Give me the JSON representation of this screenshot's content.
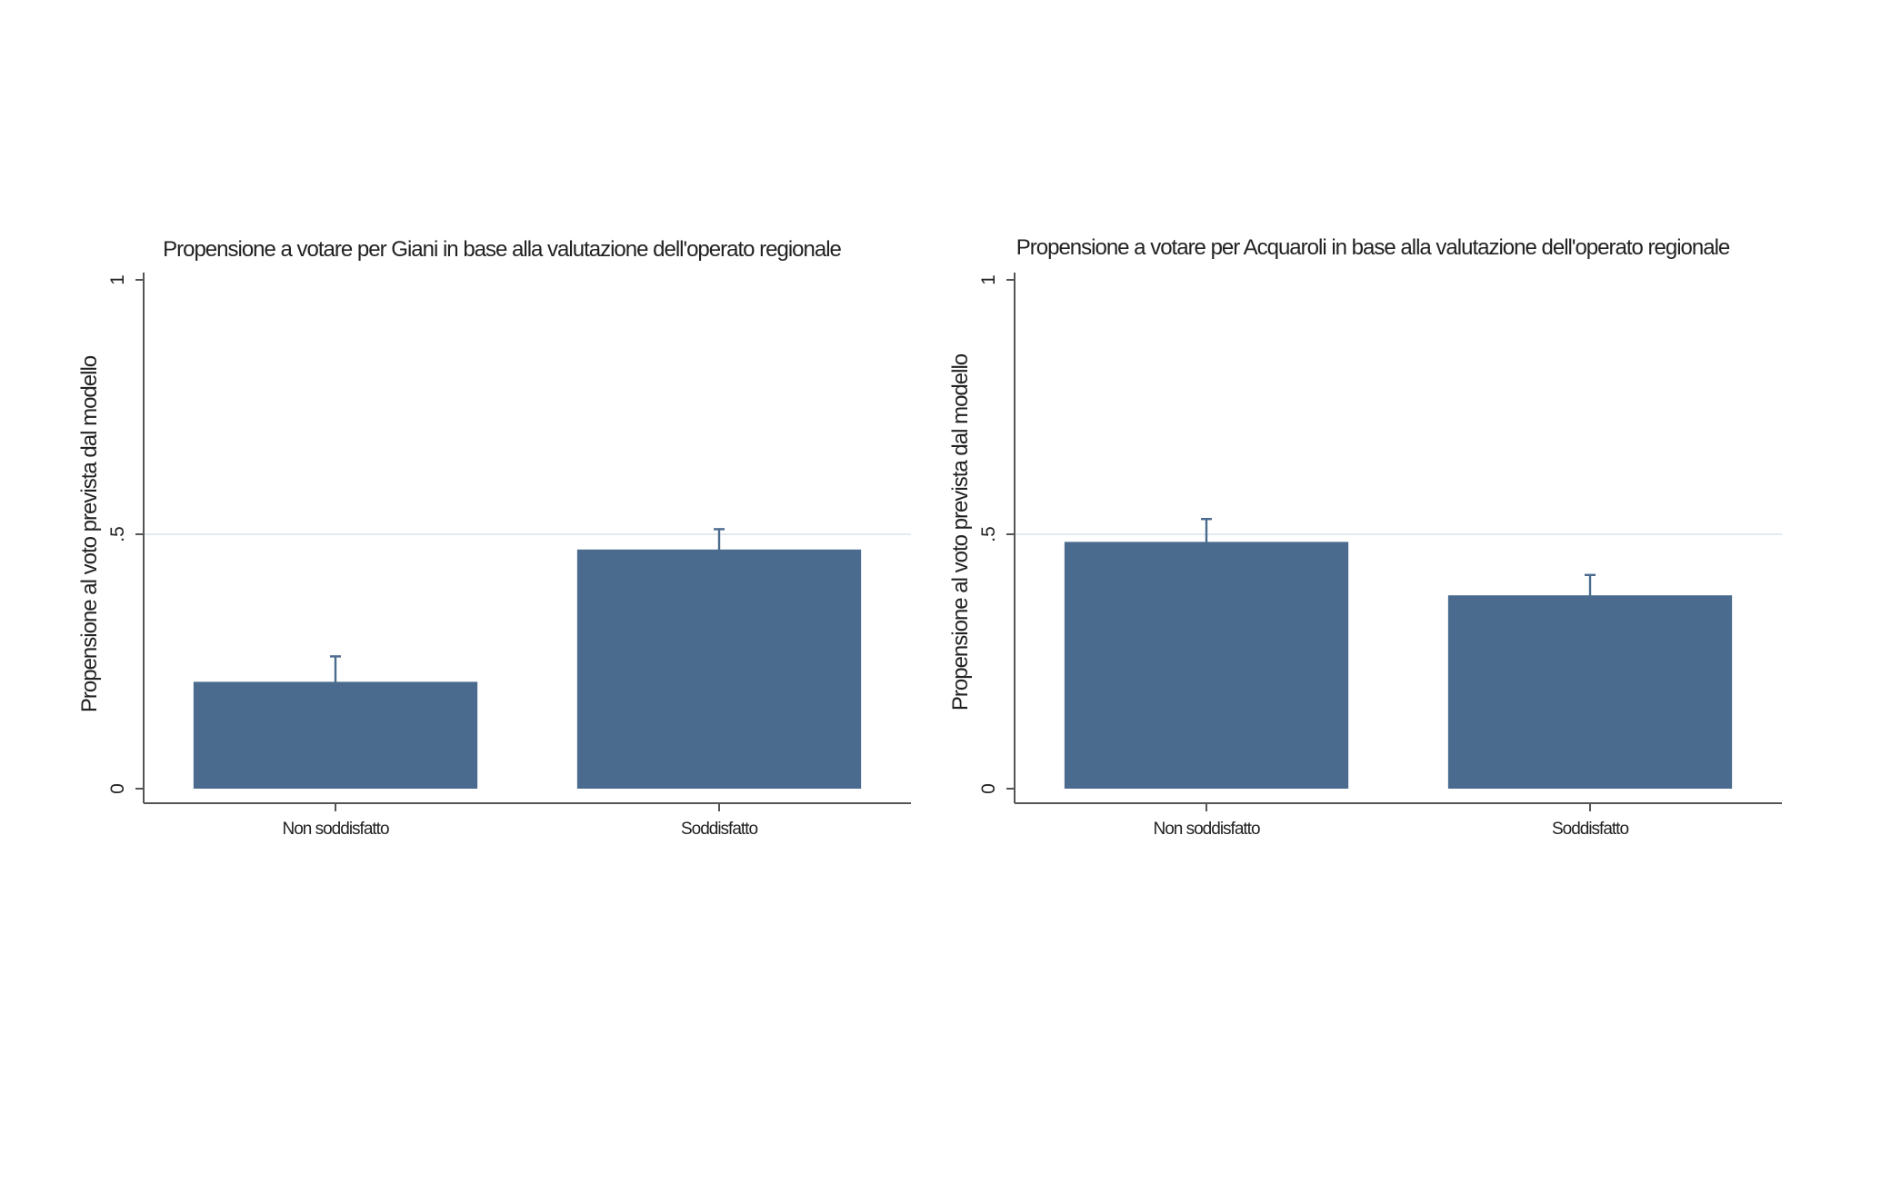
{
  "chart_data": [
    {
      "type": "bar",
      "title": "Propensione a votare per Giani in base alla valutazione dell'operato regionale",
      "ylabel": "Propensione al voto prevista dal modello",
      "xlabel": "",
      "categories": [
        "Non soddisfatto",
        "Soddisfatto"
      ],
      "values": [
        0.21,
        0.47
      ],
      "ci_low": [
        0.16,
        0.43
      ],
      "ci_high": [
        0.26,
        0.51
      ],
      "ylim": [
        0,
        1
      ],
      "yticks": [
        0,
        0.5,
        1
      ],
      "ytick_labels": [
        "0",
        ".5",
        "1"
      ],
      "grid": true,
      "bar_color": "#4a6b8e"
    },
    {
      "type": "bar",
      "title": "Propensione a votare per Acquaroli in base alla valutazione dell'operato regionale",
      "ylabel": "Propensione al voto prevista dal modello",
      "xlabel": "",
      "categories": [
        "Non soddisfatto",
        "Soddisfatto"
      ],
      "values": [
        0.485,
        0.38
      ],
      "ci_low": [
        0.44,
        0.34
      ],
      "ci_high": [
        0.53,
        0.42
      ],
      "ylim": [
        0,
        1
      ],
      "yticks": [
        0,
        0.5,
        1
      ],
      "ytick_labels": [
        "0",
        ".5",
        "1"
      ],
      "grid": true,
      "bar_color": "#4a6b8e"
    }
  ]
}
